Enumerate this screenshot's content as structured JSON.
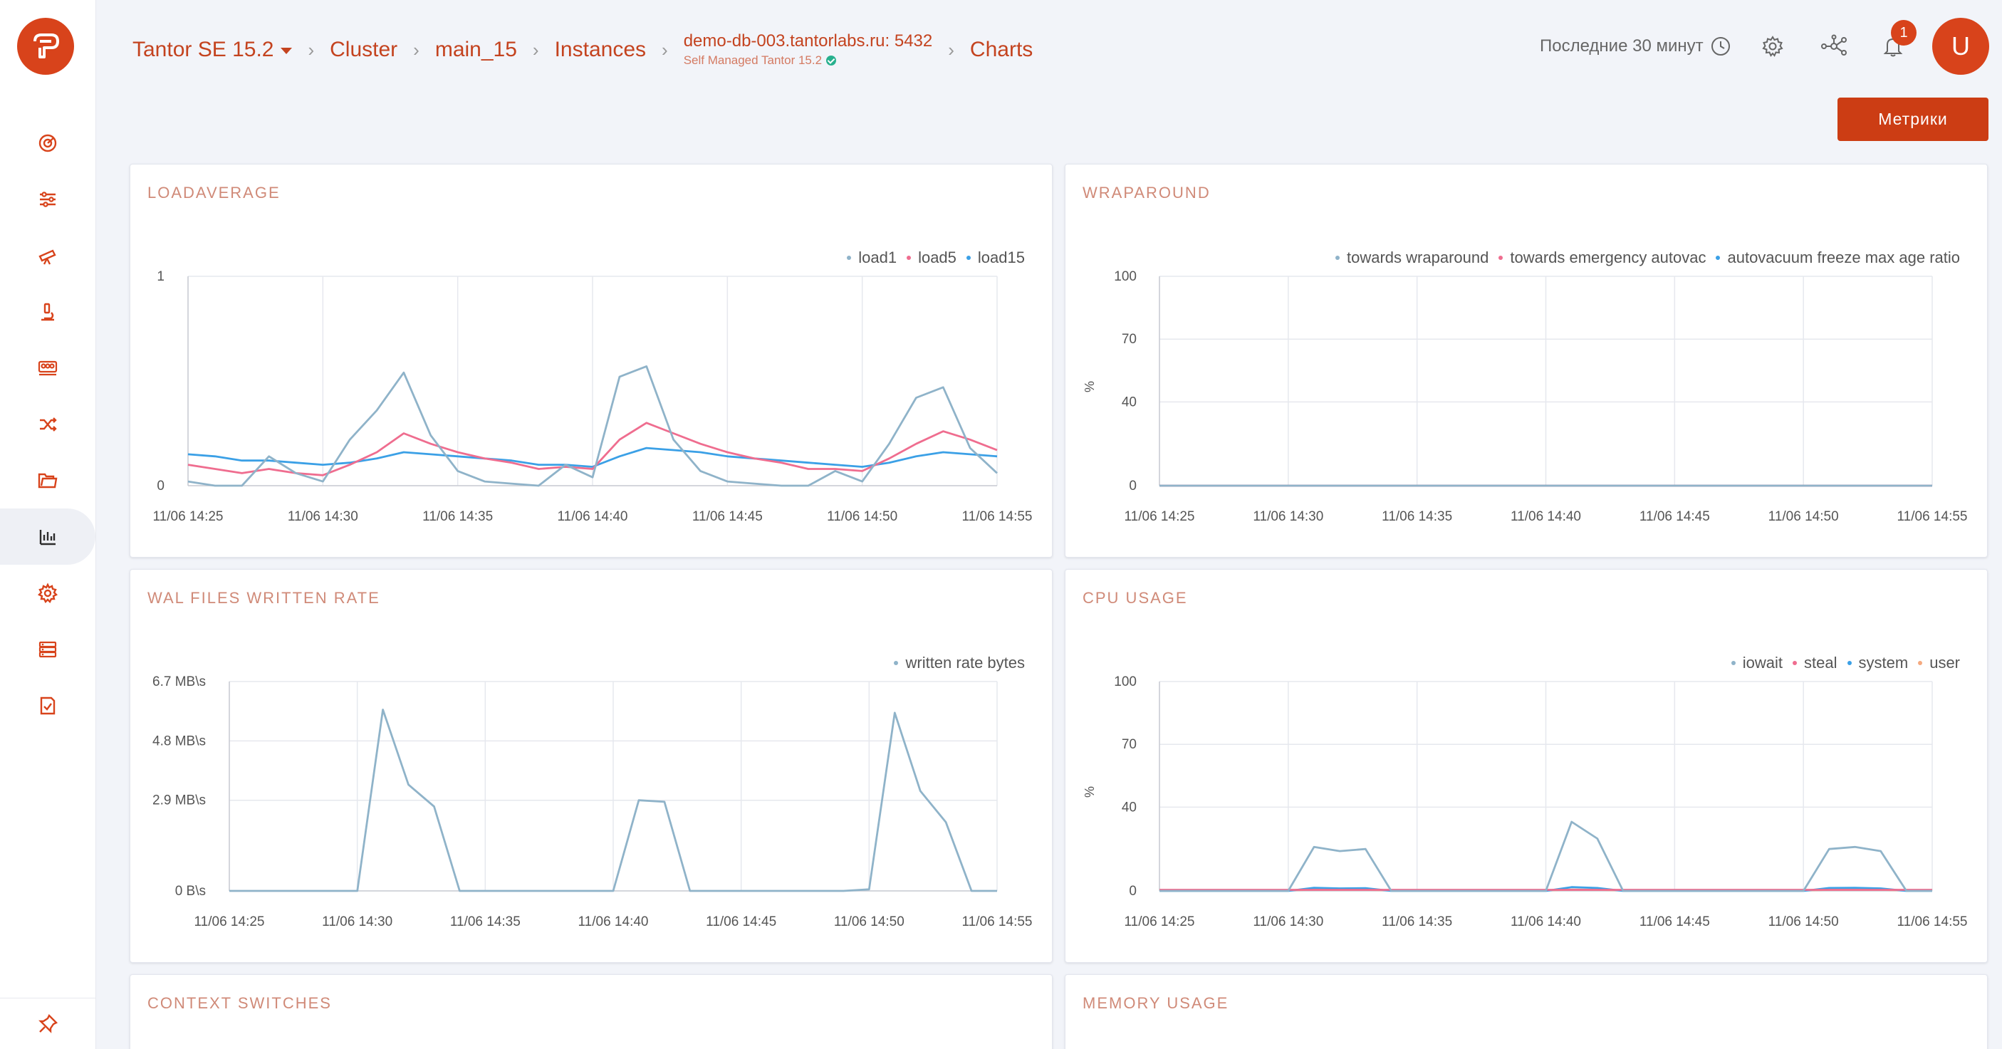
{
  "sidebar": {
    "items": [
      {
        "icon": "dashboard-gauge-icon"
      },
      {
        "icon": "sliders-icon"
      },
      {
        "icon": "telescope-icon"
      },
      {
        "icon": "microscope-icon"
      },
      {
        "icon": "group-icon"
      },
      {
        "icon": "shuffle-icon"
      },
      {
        "icon": "folder-icon"
      },
      {
        "icon": "bar-chart-icon",
        "active": true
      },
      {
        "icon": "gear-icon"
      },
      {
        "icon": "server-stack-icon"
      },
      {
        "icon": "checklist-icon"
      }
    ],
    "pin_icon": "pin-icon"
  },
  "header": {
    "breadcrumb": {
      "product": "Tantor SE 15.2",
      "cluster": "Cluster",
      "db": "main_15",
      "instances": "Instances",
      "host": "demo-db-003.tantorlabs.ru: 5432",
      "host_sub": "Self Managed Tantor 15.2",
      "charts": "Charts"
    },
    "time_range": "Последние 30 минут",
    "notification_count": "1",
    "avatar_letter": "U"
  },
  "metrics_button": "Метрики",
  "colors": {
    "accent": "#d8431b",
    "series_teal": "#8fb3c9",
    "series_pink": "#ef6d8f",
    "series_blue": "#3ba0e6",
    "series_orange": "#f5a97f"
  },
  "panels": [
    {
      "title": "LOADAVERAGE"
    },
    {
      "title": "WRAPAROUND"
    },
    {
      "title": "WAL FILES WRITTEN RATE"
    },
    {
      "title": "CPU USAGE"
    },
    {
      "title": "CONTEXT SWITCHES"
    },
    {
      "title": "MEMORY USAGE"
    }
  ],
  "chart_data": [
    {
      "type": "line",
      "title": "LOADAVERAGE",
      "x": [
        "11/06 14:25",
        "11/06 14:26",
        "11/06 14:27",
        "11/06 14:28",
        "11/06 14:29",
        "11/06 14:30",
        "11/06 14:31",
        "11/06 14:32",
        "11/06 14:33",
        "11/06 14:34",
        "11/06 14:35",
        "11/06 14:36",
        "11/06 14:37",
        "11/06 14:38",
        "11/06 14:39",
        "11/06 14:40",
        "11/06 14:41",
        "11/06 14:42",
        "11/06 14:43",
        "11/06 14:44",
        "11/06 14:45",
        "11/06 14:46",
        "11/06 14:47",
        "11/06 14:48",
        "11/06 14:49",
        "11/06 14:50",
        "11/06 14:51",
        "11/06 14:52",
        "11/06 14:53",
        "11/06 14:54",
        "11/06 14:55"
      ],
      "xticks": [
        "11/06 14:25",
        "11/06 14:30",
        "11/06 14:35",
        "11/06 14:40",
        "11/06 14:45",
        "11/06 14:50",
        "11/06 14:55"
      ],
      "yticks": [
        "1",
        "0"
      ],
      "ylim": [
        0,
        1
      ],
      "ylabel": "",
      "legend": "top-right",
      "series": [
        {
          "name": "load1",
          "color": "#8fb3c9",
          "values": [
            0.02,
            0,
            0,
            0.14,
            0.06,
            0.02,
            0.22,
            0.36,
            0.54,
            0.24,
            0.07,
            0.02,
            0.01,
            0,
            0.1,
            0.04,
            0.52,
            0.57,
            0.22,
            0.07,
            0.02,
            0.01,
            0,
            0,
            0.07,
            0.02,
            0.2,
            0.42,
            0.47,
            0.18,
            0.06
          ]
        },
        {
          "name": "load5",
          "color": "#ef6d8f",
          "values": [
            0.1,
            0.08,
            0.06,
            0.08,
            0.06,
            0.05,
            0.1,
            0.16,
            0.25,
            0.2,
            0.16,
            0.13,
            0.11,
            0.08,
            0.09,
            0.08,
            0.22,
            0.3,
            0.25,
            0.2,
            0.16,
            0.13,
            0.11,
            0.08,
            0.08,
            0.07,
            0.13,
            0.2,
            0.26,
            0.22,
            0.17
          ]
        },
        {
          "name": "load15",
          "color": "#3ba0e6",
          "values": [
            0.15,
            0.14,
            0.12,
            0.12,
            0.11,
            0.1,
            0.11,
            0.13,
            0.16,
            0.15,
            0.14,
            0.13,
            0.12,
            0.1,
            0.1,
            0.09,
            0.14,
            0.18,
            0.17,
            0.16,
            0.14,
            0.13,
            0.12,
            0.11,
            0.1,
            0.09,
            0.11,
            0.14,
            0.16,
            0.15,
            0.14
          ]
        }
      ]
    },
    {
      "type": "line",
      "title": "WRAPAROUND",
      "x": [
        "11/06 14:25",
        "11/06 14:30",
        "11/06 14:35",
        "11/06 14:40",
        "11/06 14:45",
        "11/06 14:50",
        "11/06 14:55"
      ],
      "xticks": [
        "11/06 14:25",
        "11/06 14:30",
        "11/06 14:35",
        "11/06 14:40",
        "11/06 14:45",
        "11/06 14:50",
        "11/06 14:55"
      ],
      "yticks": [
        "100",
        "70",
        "40",
        "0"
      ],
      "ylim": [
        0,
        100
      ],
      "ylabel": "%",
      "legend": "top-right",
      "series": [
        {
          "name": "towards wraparound",
          "color": "#8fb3c9",
          "values": [
            0,
            0,
            0,
            0,
            0,
            0,
            0
          ]
        },
        {
          "name": "towards emergency autovac",
          "color": "#ef6d8f",
          "values": [
            0,
            0,
            0,
            0,
            0,
            0,
            0
          ]
        },
        {
          "name": "autovacuum freeze max age ratio",
          "color": "#3ba0e6",
          "values": [
            0,
            0,
            0,
            0,
            0,
            0,
            0
          ]
        }
      ]
    },
    {
      "type": "line",
      "title": "WAL FILES WRITTEN RATE",
      "x": [
        "11/06 14:25",
        "11/06 14:26",
        "11/06 14:27",
        "11/06 14:28",
        "11/06 14:29",
        "11/06 14:30",
        "11/06 14:31",
        "11/06 14:32",
        "11/06 14:33",
        "11/06 14:34",
        "11/06 14:35",
        "11/06 14:36",
        "11/06 14:37",
        "11/06 14:38",
        "11/06 14:39",
        "11/06 14:40",
        "11/06 14:41",
        "11/06 14:42",
        "11/06 14:43",
        "11/06 14:44",
        "11/06 14:45",
        "11/06 14:46",
        "11/06 14:47",
        "11/06 14:48",
        "11/06 14:49",
        "11/06 14:50",
        "11/06 14:51",
        "11/06 14:52",
        "11/06 14:53",
        "11/06 14:54",
        "11/06 14:55"
      ],
      "xticks": [
        "11/06 14:25",
        "11/06 14:30",
        "11/06 14:35",
        "11/06 14:40",
        "11/06 14:45",
        "11/06 14:50",
        "11/06 14:55"
      ],
      "yticks": [
        "6.7 MB\\s",
        "4.8 MB\\s",
        "2.9 MB\\s",
        "0 B\\s"
      ],
      "ylim": [
        0,
        6.7
      ],
      "ylabel": "",
      "legend": "top-right",
      "series": [
        {
          "name": "written rate bytes",
          "color": "#8fb3c9",
          "values": [
            0,
            0,
            0,
            0,
            0,
            0,
            5.8,
            3.4,
            2.7,
            0,
            0,
            0,
            0,
            0,
            0,
            0,
            2.9,
            2.85,
            0,
            0,
            0,
            0,
            0,
            0,
            0,
            0.05,
            5.7,
            3.2,
            2.2,
            0,
            0
          ]
        }
      ]
    },
    {
      "type": "line",
      "title": "CPU USAGE",
      "x": [
        "11/06 14:25",
        "11/06 14:26",
        "11/06 14:27",
        "11/06 14:28",
        "11/06 14:29",
        "11/06 14:30",
        "11/06 14:31",
        "11/06 14:32",
        "11/06 14:33",
        "11/06 14:34",
        "11/06 14:35",
        "11/06 14:36",
        "11/06 14:37",
        "11/06 14:38",
        "11/06 14:39",
        "11/06 14:40",
        "11/06 14:41",
        "11/06 14:42",
        "11/06 14:43",
        "11/06 14:44",
        "11/06 14:45",
        "11/06 14:46",
        "11/06 14:47",
        "11/06 14:48",
        "11/06 14:49",
        "11/06 14:50",
        "11/06 14:51",
        "11/06 14:52",
        "11/06 14:53",
        "11/06 14:54",
        "11/06 14:55"
      ],
      "xticks": [
        "11/06 14:25",
        "11/06 14:30",
        "11/06 14:35",
        "11/06 14:40",
        "11/06 14:45",
        "11/06 14:50",
        "11/06 14:55"
      ],
      "yticks": [
        "100",
        "70",
        "40",
        "0"
      ],
      "ylim": [
        0,
        100
      ],
      "ylabel": "%",
      "legend": "top-right",
      "series": [
        {
          "name": "iowait",
          "color": "#8fb3c9",
          "values": [
            0,
            0,
            0,
            0,
            0,
            0,
            21,
            19,
            20,
            0,
            0,
            0,
            0,
            0,
            0,
            0,
            33,
            25,
            0,
            0,
            0,
            0,
            0,
            0,
            0,
            0,
            20,
            21,
            19,
            0,
            0
          ]
        },
        {
          "name": "steal",
          "color": "#ef6d8f",
          "values": [
            0.5,
            0.5,
            0.5,
            0.5,
            0.5,
            0.5,
            0.5,
            0.5,
            0.5,
            0.5,
            0.5,
            0.5,
            0.5,
            0.5,
            0.5,
            0.5,
            0.5,
            0.5,
            0.5,
            0.5,
            0.5,
            0.5,
            0.5,
            0.5,
            0.5,
            0.5,
            0.5,
            0.5,
            0.5,
            0.5,
            0.5
          ]
        },
        {
          "name": "system",
          "color": "#3ba0e6",
          "values": [
            0,
            0,
            0,
            0,
            0,
            0,
            1.5,
            1.2,
            1.3,
            0,
            0,
            0,
            0,
            0,
            0,
            0,
            1.8,
            1.4,
            0,
            0,
            0,
            0,
            0,
            0,
            0,
            0,
            1.4,
            1.5,
            1.2,
            0,
            0
          ]
        },
        {
          "name": "user",
          "color": "#f5a97f",
          "values": [
            0.3,
            0.3,
            0.3,
            0.3,
            0.3,
            0.3,
            0.6,
            0.5,
            0.5,
            0.3,
            0.3,
            0.3,
            0.3,
            0.3,
            0.3,
            0.3,
            0.6,
            0.5,
            0.3,
            0.3,
            0.3,
            0.3,
            0.3,
            0.3,
            0.3,
            0.3,
            0.5,
            0.5,
            0.5,
            0.3,
            0.3
          ]
        }
      ]
    }
  ]
}
